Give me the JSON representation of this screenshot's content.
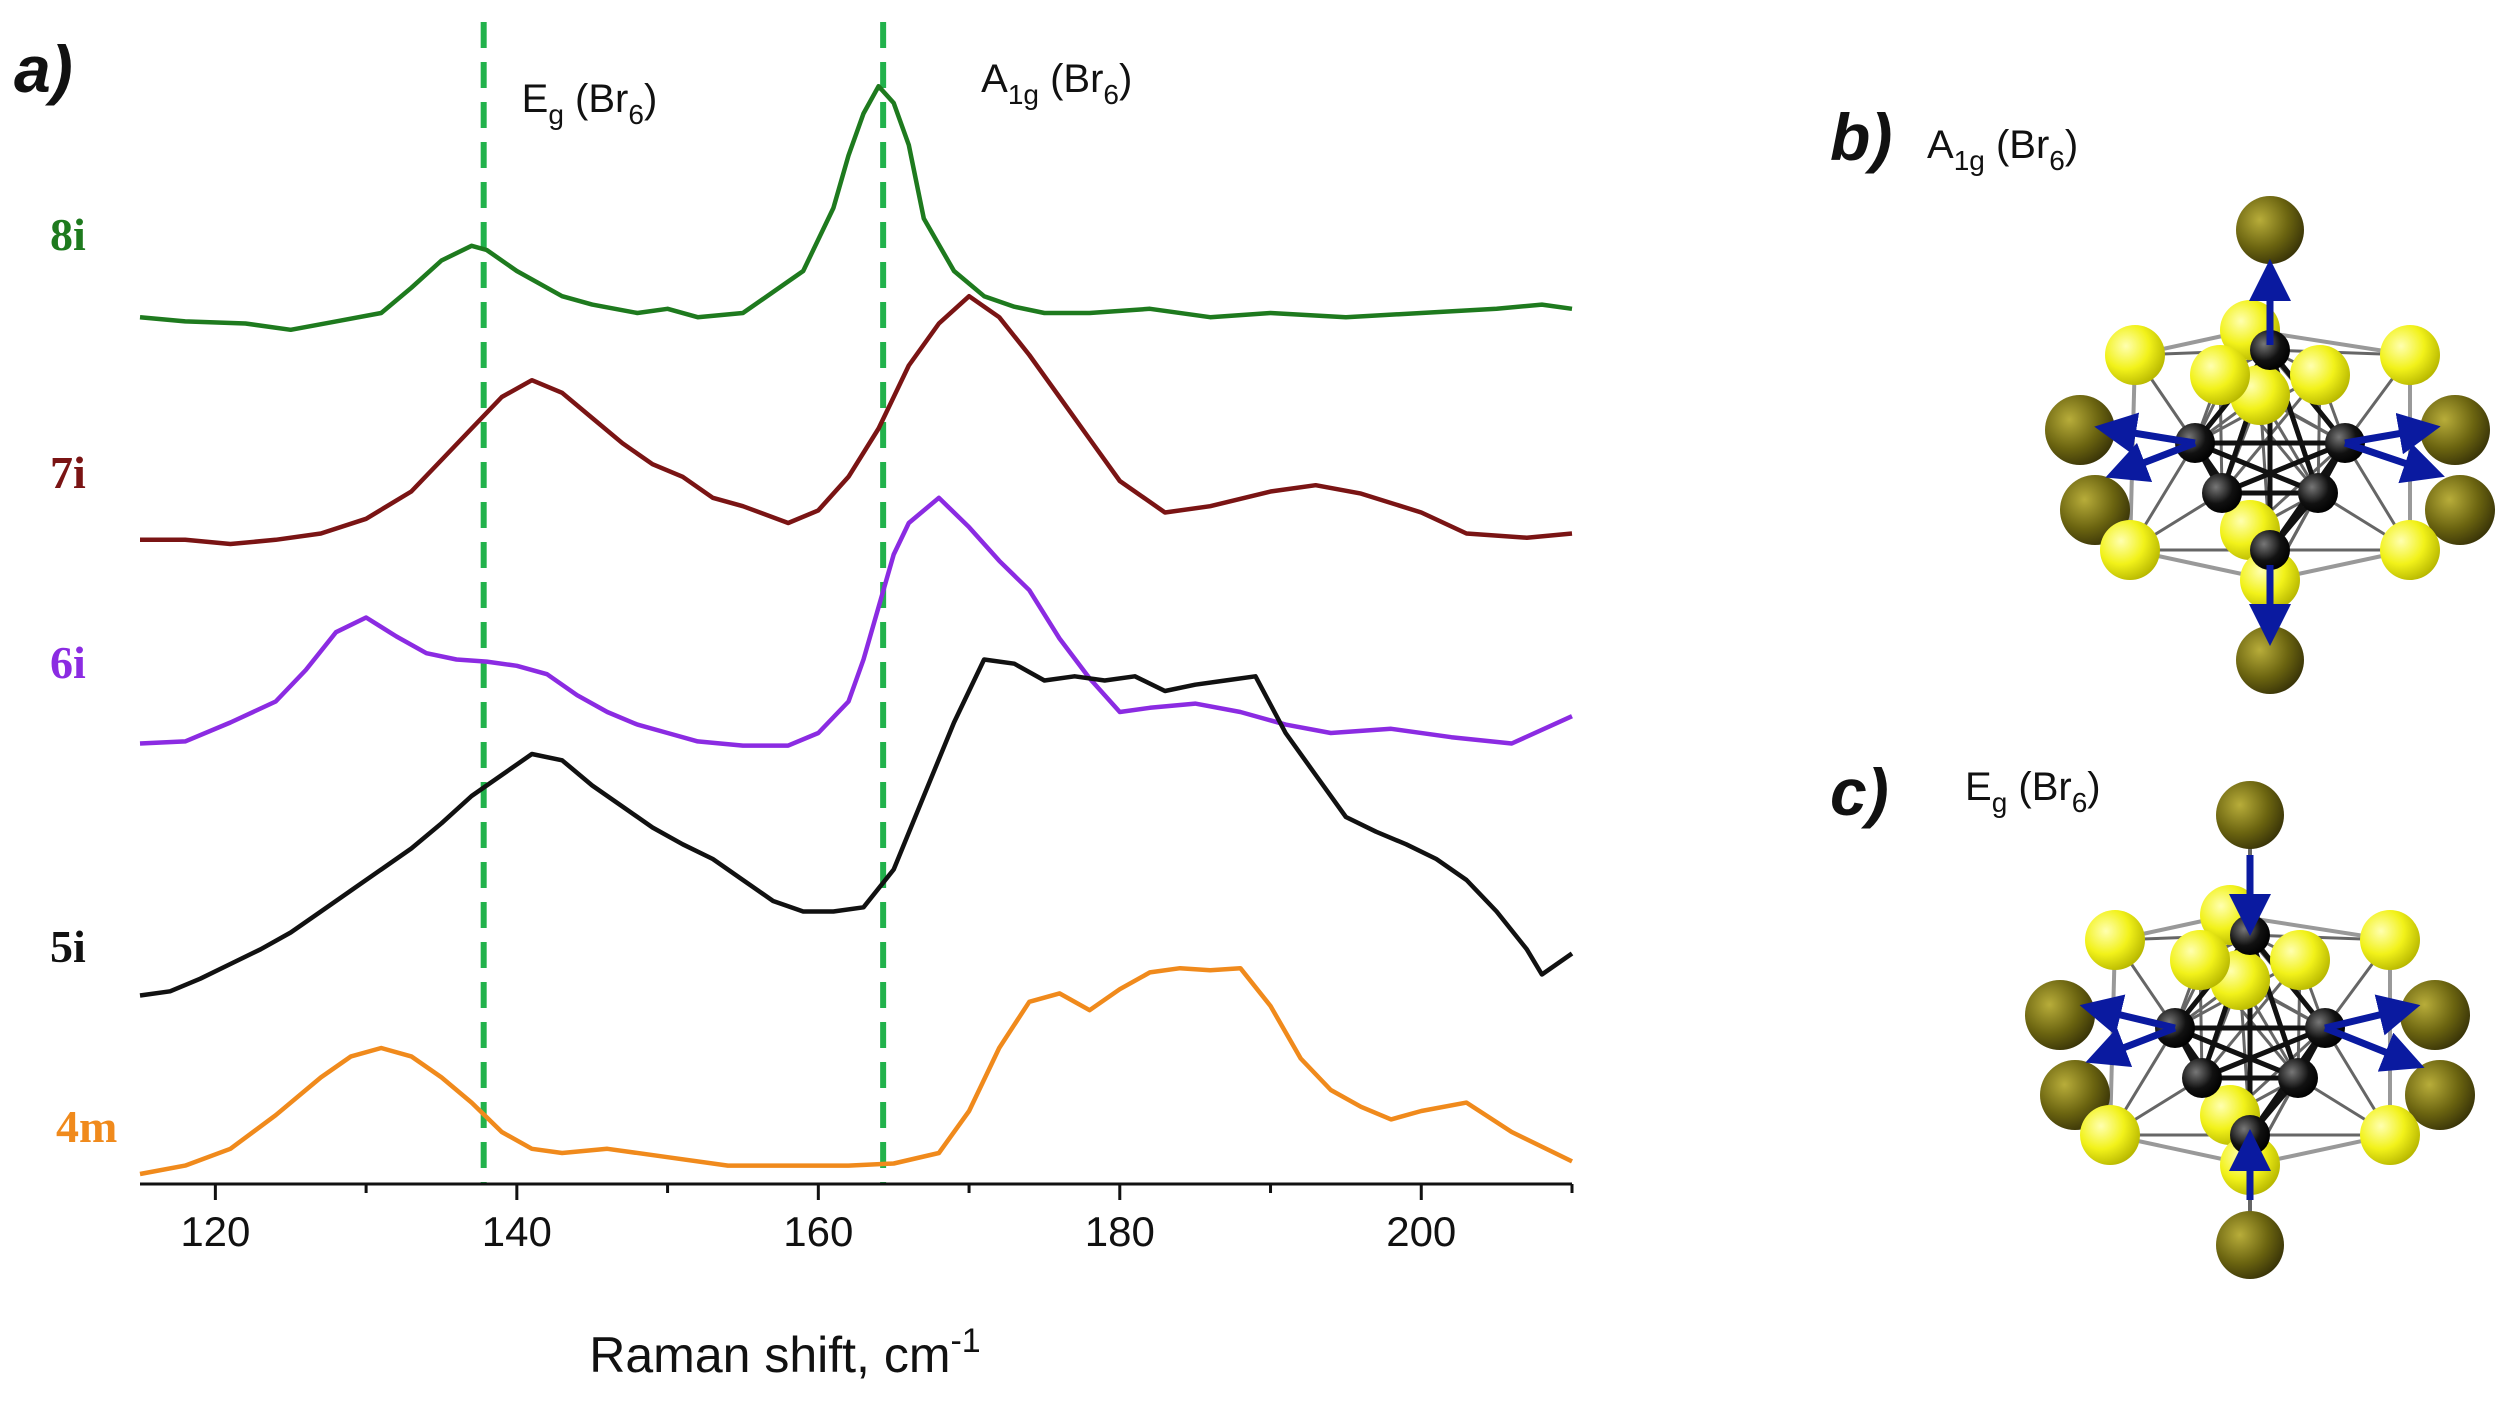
{
  "panels": {
    "a": "a)",
    "b": "b)",
    "c": "c)"
  },
  "panel_b_label": {
    "base": "A",
    "sub": "1g",
    "open": " (Br",
    "sub2": "6",
    "close": ")"
  },
  "panel_c_label": {
    "base": "E",
    "sub": "g",
    "open": " (Br",
    "sub2": "6",
    "close": ")"
  },
  "colors": {
    "8i": "#1e7a1e",
    "7i": "#7a1414",
    "6i": "#8b2be2",
    "5i": "#111111",
    "4m": "#f08a1c",
    "guide": "#22b24c",
    "arrow": "#0a1aa0",
    "br_atom": "#6b6410",
    "yellow_atom": "#f2f21a",
    "metal_atom": "#111111"
  },
  "chart_data": {
    "type": "line",
    "title": "",
    "xlabel": {
      "text": "Raman shift, cm",
      "sup": "-1"
    },
    "ylabel": "",
    "xlim": [
      115,
      210
    ],
    "xticks": [
      "120",
      "140",
      "160",
      "180",
      "200"
    ],
    "xtick_values": [
      120,
      140,
      160,
      180,
      200
    ],
    "y_units": "arbitrary (stacked, offset)",
    "guides": [
      {
        "x": 137.8,
        "label": {
          "base": "E",
          "sub": "g",
          "open": " (Br",
          "sub2": "6",
          "close": ")"
        }
      },
      {
        "x": 164.3,
        "label": {
          "base": "A",
          "sub": "1g",
          "open": " (Br",
          "sub2": "6",
          "close": ")"
        }
      }
    ],
    "series": [
      {
        "name": "8i",
        "color": "#1e7a1e",
        "offset": 4.0,
        "x": [
          115,
          118,
          122,
          125,
          128,
          131,
          133,
          135,
          137,
          138,
          140,
          143,
          145,
          148,
          150,
          152,
          155,
          157,
          159,
          161,
          162,
          163,
          164,
          165,
          166,
          167,
          169,
          171,
          173,
          175,
          178,
          182,
          186,
          190,
          195,
          200,
          205,
          208,
          210
        ],
        "y": [
          0.08,
          0.06,
          0.05,
          0.02,
          0.06,
          0.1,
          0.22,
          0.35,
          0.42,
          0.4,
          0.3,
          0.18,
          0.14,
          0.1,
          0.12,
          0.08,
          0.1,
          0.2,
          0.3,
          0.6,
          0.85,
          1.05,
          1.18,
          1.1,
          0.9,
          0.55,
          0.3,
          0.18,
          0.13,
          0.1,
          0.1,
          0.12,
          0.08,
          0.1,
          0.08,
          0.1,
          0.12,
          0.14,
          0.12
        ]
      },
      {
        "name": "7i",
        "color": "#7a1414",
        "offset": 3.0,
        "x": [
          115,
          118,
          121,
          124,
          127,
          130,
          133,
          135,
          137,
          139,
          141,
          143,
          145,
          147,
          149,
          151,
          153,
          155,
          158,
          160,
          162,
          164,
          166,
          168,
          170,
          172,
          174,
          176,
          178,
          180,
          183,
          186,
          190,
          193,
          196,
          200,
          203,
          207,
          210
        ],
        "y": [
          0.02,
          0.02,
          0.0,
          0.02,
          0.05,
          0.12,
          0.25,
          0.4,
          0.55,
          0.7,
          0.78,
          0.72,
          0.6,
          0.48,
          0.38,
          0.32,
          0.22,
          0.18,
          0.1,
          0.16,
          0.32,
          0.55,
          0.85,
          1.05,
          1.18,
          1.08,
          0.9,
          0.7,
          0.5,
          0.3,
          0.15,
          0.18,
          0.25,
          0.28,
          0.24,
          0.15,
          0.05,
          0.03,
          0.05
        ]
      },
      {
        "name": "6i",
        "color": "#8b2be2",
        "offset": 2.0,
        "x": [
          115,
          118,
          121,
          124,
          126,
          128,
          130,
          132,
          134,
          136,
          138,
          140,
          142,
          144,
          146,
          148,
          150,
          152,
          155,
          158,
          160,
          162,
          163,
          164,
          165,
          166,
          168,
          170,
          172,
          174,
          176,
          178,
          180,
          182,
          185,
          188,
          191,
          194,
          198,
          202,
          206,
          210
        ],
        "y": [
          0.05,
          0.06,
          0.15,
          0.25,
          0.4,
          0.58,
          0.65,
          0.56,
          0.48,
          0.45,
          0.44,
          0.42,
          0.38,
          0.28,
          0.2,
          0.14,
          0.1,
          0.06,
          0.04,
          0.04,
          0.1,
          0.25,
          0.45,
          0.7,
          0.95,
          1.1,
          1.22,
          1.08,
          0.92,
          0.78,
          0.55,
          0.36,
          0.2,
          0.22,
          0.24,
          0.2,
          0.14,
          0.1,
          0.12,
          0.08,
          0.05,
          0.18
        ]
      },
      {
        "name": "5i",
        "color": "#111111",
        "offset": 0.85,
        "x": [
          115,
          117,
          119,
          121,
          123,
          125,
          127,
          129,
          131,
          133,
          135,
          137,
          139,
          141,
          143,
          145,
          147,
          149,
          151,
          153,
          155,
          157,
          159,
          161,
          163,
          165,
          167,
          169,
          171,
          173,
          175,
          177,
          179,
          181,
          183,
          185,
          187,
          189,
          191,
          193,
          195,
          197,
          199,
          201,
          203,
          205,
          207,
          208,
          210
        ],
        "y": [
          0.0,
          0.02,
          0.08,
          0.15,
          0.22,
          0.3,
          0.4,
          0.5,
          0.6,
          0.7,
          0.82,
          0.95,
          1.05,
          1.15,
          1.12,
          1.0,
          0.9,
          0.8,
          0.72,
          0.65,
          0.55,
          0.45,
          0.4,
          0.4,
          0.42,
          0.6,
          0.95,
          1.3,
          1.6,
          1.58,
          1.5,
          1.52,
          1.5,
          1.52,
          1.45,
          1.48,
          1.5,
          1.52,
          1.25,
          1.05,
          0.85,
          0.78,
          0.72,
          0.65,
          0.55,
          0.4,
          0.22,
          0.1,
          0.2
        ]
      },
      {
        "name": "4m",
        "color": "#f08a1c",
        "offset": 0.0,
        "x": [
          115,
          118,
          121,
          124,
          127,
          129,
          131,
          133,
          135,
          137,
          139,
          141,
          143,
          146,
          150,
          154,
          158,
          162,
          165,
          168,
          170,
          172,
          174,
          176,
          178,
          180,
          182,
          184,
          186,
          188,
          190,
          192,
          194,
          196,
          198,
          200,
          203,
          206,
          210
        ],
        "y": [
          0.0,
          0.04,
          0.12,
          0.28,
          0.46,
          0.56,
          0.6,
          0.56,
          0.46,
          0.34,
          0.2,
          0.12,
          0.1,
          0.12,
          0.08,
          0.04,
          0.04,
          0.04,
          0.05,
          0.1,
          0.3,
          0.6,
          0.82,
          0.86,
          0.78,
          0.88,
          0.96,
          0.98,
          0.97,
          0.98,
          0.8,
          0.55,
          0.4,
          0.32,
          0.26,
          0.3,
          0.34,
          0.2,
          0.06
        ]
      }
    ]
  }
}
